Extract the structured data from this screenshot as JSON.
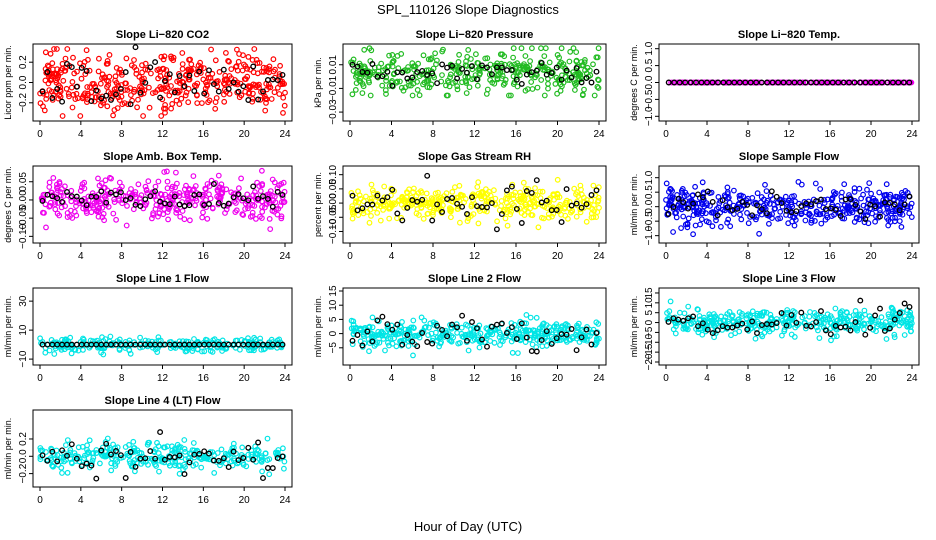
{
  "title": "SPL_110126  Slope Diagnostics",
  "x_label": "Hour of Day (UTC)",
  "chart_data": [
    {
      "type": "scatter",
      "title": "Slope Li−820 CO2",
      "ylabel": "Licor ppm per min.",
      "xlim": [
        0,
        24
      ],
      "ylim": [
        -0.35,
        0.35
      ],
      "yticks": [
        -0.2,
        0,
        0.2
      ],
      "ytick_labels": [
        "−0.2",
        "0.0",
        "0.2"
      ],
      "xticks": [
        0,
        4,
        8,
        12,
        16,
        20,
        24
      ],
      "color": "#ff0000",
      "n_points": 420,
      "n_black": 50,
      "seed": 11,
      "gen": {
        "center": 0,
        "sd": 0.15,
        "clip": 0.33,
        "black_sd": 0.12
      }
    },
    {
      "type": "scatter",
      "title": "Slope Li−820 Pressure",
      "ylabel": "kPa per min.",
      "xlim": [
        0,
        24
      ],
      "ylim": [
        -0.035,
        0.025
      ],
      "yticks": [
        -0.03,
        -0.01,
        0.01
      ],
      "ytick_labels": [
        "−0.03",
        "−0.01",
        "0.01"
      ],
      "xticks": [
        0,
        4,
        8,
        12,
        16,
        20,
        24
      ],
      "color": "#22bb22",
      "n_points": 380,
      "n_black": 50,
      "seed": 23,
      "gen": {
        "center": 0.004,
        "sd": 0.009,
        "clip": 0.02,
        "black_sd": 0.004
      }
    },
    {
      "type": "scatter",
      "title": "Slope Li−820 Temp.",
      "ylabel": "degrees C per min.",
      "xlim": [
        0,
        24
      ],
      "ylim": [
        -1.05,
        1.05
      ],
      "yticks": [
        -1,
        -0.5,
        0,
        0.5,
        1
      ],
      "ytick_labels": [
        "−1.0",
        "−0.5",
        "0.0",
        "0.5",
        "1.0"
      ],
      "xticks": [
        0,
        4,
        8,
        12,
        16,
        20,
        24
      ],
      "color": "#ee00ee",
      "n_points": 260,
      "n_black": 45,
      "seed": 37,
      "gen": {
        "center": 0,
        "sd": 0.0,
        "clip": 0.0,
        "black_sd": 0.0
      }
    },
    {
      "type": "scatter",
      "title": "Slope Amb. Box Temp.",
      "ylabel": "degrees C per min.",
      "xlim": [
        0,
        24
      ],
      "ylim": [
        -0.11,
        0.085
      ],
      "yticks": [
        -0.1,
        -0.05,
        0,
        0.05
      ],
      "ytick_labels": [
        "−0.10",
        "−0.05",
        "0.00",
        "0.05"
      ],
      "xticks": [
        0,
        4,
        8,
        12,
        16,
        20,
        24
      ],
      "color": "#ee00ee",
      "n_points": 380,
      "n_black": 50,
      "seed": 41,
      "gen": {
        "center": 0,
        "sd": 0.03,
        "clip": 0.08,
        "black_sd": 0.018
      }
    },
    {
      "type": "scatter",
      "title": "Slope Gas Stream RH",
      "ylabel": "percent per min.",
      "xlim": [
        0,
        24
      ],
      "ylim": [
        -0.13,
        0.12
      ],
      "yticks": [
        -0.1,
        -0.05,
        0,
        0.05,
        0.1
      ],
      "ytick_labels": [
        "−0.10",
        "−0.05",
        "0.00",
        "0.05",
        "0.10"
      ],
      "xticks": [
        0,
        4,
        8,
        12,
        16,
        20,
        24
      ],
      "color": "#ffff00",
      "n_points": 380,
      "n_black": 50,
      "seed": 53,
      "gen": {
        "center": 0,
        "sd": 0.03,
        "clip": 0.11,
        "black_sd": 0.035
      }
    },
    {
      "type": "scatter",
      "title": "Slope Sample Flow",
      "ylabel": "ml/min per min.",
      "xlim": [
        0,
        24
      ],
      "ylim": [
        -1.15,
        1.3
      ],
      "yticks": [
        -1,
        -0.5,
        0,
        0.5,
        1
      ],
      "ytick_labels": [
        "−1.0",
        "−0.5",
        "0.0",
        "0.5",
        "1.0"
      ],
      "xticks": [
        0,
        4,
        8,
        12,
        16,
        20,
        24
      ],
      "color": "#0000ee",
      "n_points": 420,
      "n_black": 50,
      "seed": 67,
      "gen": {
        "center": 0,
        "sd": 0.3,
        "clip": 0.95,
        "black_sd": 0.2
      }
    },
    {
      "type": "scatter",
      "title": "Slope Line 1 Flow",
      "ylabel": "ml/min per min.",
      "xlim": [
        0,
        24
      ],
      "ylim": [
        -12,
        37
      ],
      "yticks": [
        -10,
        10,
        30
      ],
      "ytick_labels": [
        "−10",
        "10",
        "30"
      ],
      "xticks": [
        0,
        4,
        8,
        12,
        16,
        20,
        24
      ],
      "color": "#00e5e5",
      "n_points": 260,
      "n_black": 50,
      "seed": 71,
      "gen": {
        "center": 0,
        "sd": 2.5,
        "clip": 9,
        "black_sd": 0.0
      }
    },
    {
      "type": "scatter",
      "title": "Slope Line 2 Flow",
      "ylabel": "ml/min per min.",
      "xlim": [
        0,
        24
      ],
      "ylim": [
        -10,
        15
      ],
      "yticks": [
        -5,
        0,
        5,
        10,
        15
      ],
      "ytick_labels": [
        "−5",
        "0",
        "5",
        "10",
        "15"
      ],
      "xticks": [
        0,
        4,
        8,
        12,
        16,
        20,
        24
      ],
      "color": "#00e5e5",
      "n_points": 380,
      "n_black": 50,
      "seed": 83,
      "gen": {
        "center": 0,
        "sd": 2.3,
        "clip": 8,
        "black_sd": 3.0
      }
    },
    {
      "type": "scatter",
      "title": "Slope Line 3 Flow",
      "ylabel": "ml/min per min.",
      "xlim": [
        0,
        24
      ],
      "ylim": [
        -20,
        16
      ],
      "yticks": [
        -20,
        -15,
        -10,
        -5,
        0,
        5,
        10,
        15
      ],
      "ytick_labels": [
        "−20",
        "−15",
        "−10",
        "−5",
        "0",
        "5",
        "10",
        "15"
      ],
      "xticks": [
        0,
        4,
        8,
        12,
        16,
        20,
        24
      ],
      "color": "#00e5e5",
      "n_points": 380,
      "n_black": 50,
      "seed": 97,
      "gen": {
        "center": 0,
        "sd": 3.5,
        "clip": 14,
        "black_sd": 4.0
      }
    },
    {
      "type": "scatter",
      "title": "Slope Line 4 (LT) Flow",
      "ylabel": "ml/min per min.",
      "xlim": [
        0,
        24
      ],
      "ylim": [
        -0.32,
        0.5
      ],
      "yticks": [
        -0.2,
        0,
        0.2
      ],
      "ytick_labels": [
        "−0.2",
        "0.0",
        "0.2"
      ],
      "xticks": [
        0,
        4,
        8,
        12,
        16,
        20,
        24
      ],
      "color": "#00e5e5",
      "n_points": 300,
      "n_black": 50,
      "seed": 101,
      "gen": {
        "center": 0,
        "sd": 0.08,
        "clip": 0.26,
        "black_sd": 0.1
      }
    }
  ]
}
